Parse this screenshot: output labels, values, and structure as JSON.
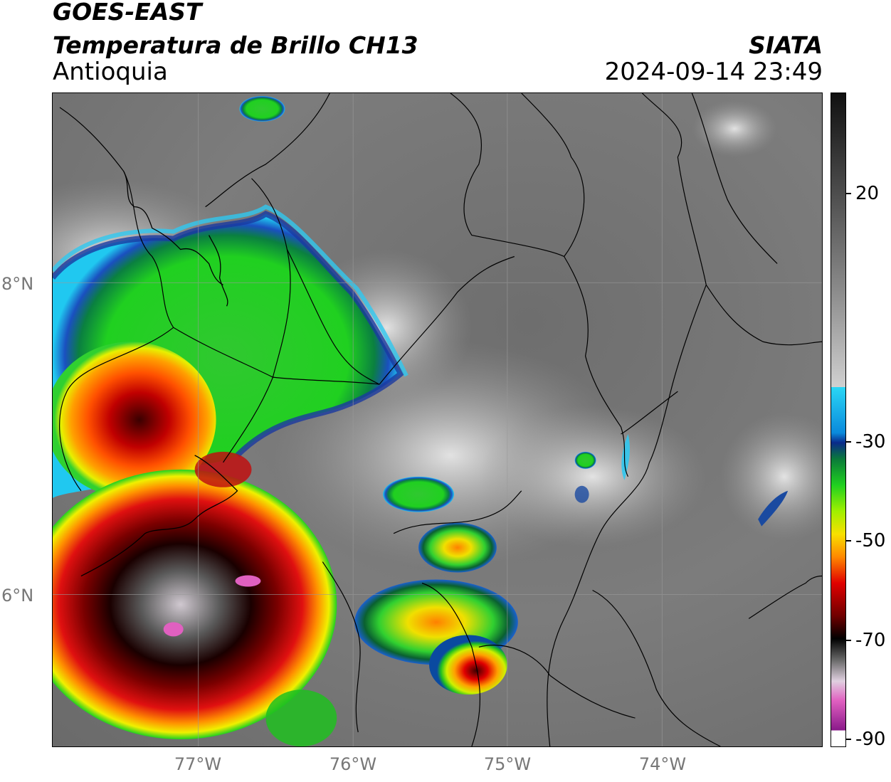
{
  "header": {
    "satellite": "GOES-EAST",
    "product": "Temperatura de Brillo CH13",
    "region": "Antioquia",
    "organization": "SIATA",
    "timestamp": "2024-09-14 23:49"
  },
  "map": {
    "lat_labels": [
      "8°N",
      "6°N"
    ],
    "lon_labels": [
      "77°W",
      "76°W",
      "75°W",
      "74°W"
    ]
  },
  "colorbar": {
    "tick_labels": [
      "20",
      "-30",
      "-50",
      "-70",
      "-90"
    ],
    "colors": {
      "warm_gray_dark": "#4a4a4a",
      "warm_gray_light": "#d9d9d9",
      "cyan": "#19c8f0",
      "blue": "#0a3a9a",
      "green": "#1fd21f",
      "yellow": "#e8f000",
      "orange": "#ff8a00",
      "red": "#e00000",
      "dark_red": "#5a0000",
      "black": "#000000",
      "pink": "#e060c0",
      "purple": "#8a1a8a"
    }
  }
}
